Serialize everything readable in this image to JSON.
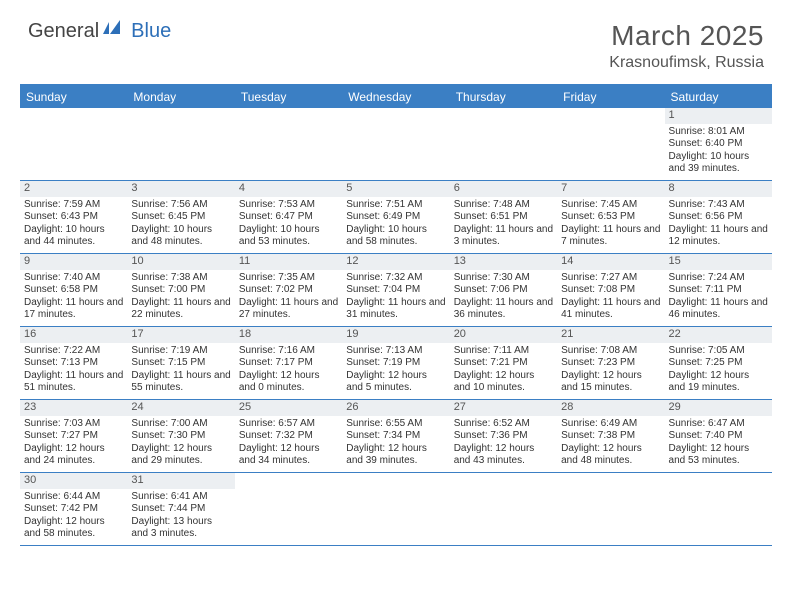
{
  "logo": {
    "text1": "General",
    "text2": "Blue"
  },
  "title": "March 2025",
  "location": "Krasnoufimsk, Russia",
  "colors": {
    "header_bg": "#3b7fc4",
    "header_text": "#ffffff",
    "daynum_bg": "#eceff2",
    "border": "#3b7fc4",
    "logo_gray": "#444444",
    "logo_blue": "#2d6fb8"
  },
  "day_headers": [
    "Sunday",
    "Monday",
    "Tuesday",
    "Wednesday",
    "Thursday",
    "Friday",
    "Saturday"
  ],
  "weeks": [
    [
      null,
      null,
      null,
      null,
      null,
      null,
      {
        "n": "1",
        "sr": "8:01 AM",
        "ss": "6:40 PM",
        "dl": "10 hours and 39 minutes."
      }
    ],
    [
      {
        "n": "2",
        "sr": "7:59 AM",
        "ss": "6:43 PM",
        "dl": "10 hours and 44 minutes."
      },
      {
        "n": "3",
        "sr": "7:56 AM",
        "ss": "6:45 PM",
        "dl": "10 hours and 48 minutes."
      },
      {
        "n": "4",
        "sr": "7:53 AM",
        "ss": "6:47 PM",
        "dl": "10 hours and 53 minutes."
      },
      {
        "n": "5",
        "sr": "7:51 AM",
        "ss": "6:49 PM",
        "dl": "10 hours and 58 minutes."
      },
      {
        "n": "6",
        "sr": "7:48 AM",
        "ss": "6:51 PM",
        "dl": "11 hours and 3 minutes."
      },
      {
        "n": "7",
        "sr": "7:45 AM",
        "ss": "6:53 PM",
        "dl": "11 hours and 7 minutes."
      },
      {
        "n": "8",
        "sr": "7:43 AM",
        "ss": "6:56 PM",
        "dl": "11 hours and 12 minutes."
      }
    ],
    [
      {
        "n": "9",
        "sr": "7:40 AM",
        "ss": "6:58 PM",
        "dl": "11 hours and 17 minutes."
      },
      {
        "n": "10",
        "sr": "7:38 AM",
        "ss": "7:00 PM",
        "dl": "11 hours and 22 minutes."
      },
      {
        "n": "11",
        "sr": "7:35 AM",
        "ss": "7:02 PM",
        "dl": "11 hours and 27 minutes."
      },
      {
        "n": "12",
        "sr": "7:32 AM",
        "ss": "7:04 PM",
        "dl": "11 hours and 31 minutes."
      },
      {
        "n": "13",
        "sr": "7:30 AM",
        "ss": "7:06 PM",
        "dl": "11 hours and 36 minutes."
      },
      {
        "n": "14",
        "sr": "7:27 AM",
        "ss": "7:08 PM",
        "dl": "11 hours and 41 minutes."
      },
      {
        "n": "15",
        "sr": "7:24 AM",
        "ss": "7:11 PM",
        "dl": "11 hours and 46 minutes."
      }
    ],
    [
      {
        "n": "16",
        "sr": "7:22 AM",
        "ss": "7:13 PM",
        "dl": "11 hours and 51 minutes."
      },
      {
        "n": "17",
        "sr": "7:19 AM",
        "ss": "7:15 PM",
        "dl": "11 hours and 55 minutes."
      },
      {
        "n": "18",
        "sr": "7:16 AM",
        "ss": "7:17 PM",
        "dl": "12 hours and 0 minutes."
      },
      {
        "n": "19",
        "sr": "7:13 AM",
        "ss": "7:19 PM",
        "dl": "12 hours and 5 minutes."
      },
      {
        "n": "20",
        "sr": "7:11 AM",
        "ss": "7:21 PM",
        "dl": "12 hours and 10 minutes."
      },
      {
        "n": "21",
        "sr": "7:08 AM",
        "ss": "7:23 PM",
        "dl": "12 hours and 15 minutes."
      },
      {
        "n": "22",
        "sr": "7:05 AM",
        "ss": "7:25 PM",
        "dl": "12 hours and 19 minutes."
      }
    ],
    [
      {
        "n": "23",
        "sr": "7:03 AM",
        "ss": "7:27 PM",
        "dl": "12 hours and 24 minutes."
      },
      {
        "n": "24",
        "sr": "7:00 AM",
        "ss": "7:30 PM",
        "dl": "12 hours and 29 minutes."
      },
      {
        "n": "25",
        "sr": "6:57 AM",
        "ss": "7:32 PM",
        "dl": "12 hours and 34 minutes."
      },
      {
        "n": "26",
        "sr": "6:55 AM",
        "ss": "7:34 PM",
        "dl": "12 hours and 39 minutes."
      },
      {
        "n": "27",
        "sr": "6:52 AM",
        "ss": "7:36 PM",
        "dl": "12 hours and 43 minutes."
      },
      {
        "n": "28",
        "sr": "6:49 AM",
        "ss": "7:38 PM",
        "dl": "12 hours and 48 minutes."
      },
      {
        "n": "29",
        "sr": "6:47 AM",
        "ss": "7:40 PM",
        "dl": "12 hours and 53 minutes."
      }
    ],
    [
      {
        "n": "30",
        "sr": "6:44 AM",
        "ss": "7:42 PM",
        "dl": "12 hours and 58 minutes."
      },
      {
        "n": "31",
        "sr": "6:41 AM",
        "ss": "7:44 PM",
        "dl": "13 hours and 3 minutes."
      },
      null,
      null,
      null,
      null,
      null
    ]
  ],
  "labels": {
    "sunrise": "Sunrise:",
    "sunset": "Sunset:",
    "daylight": "Daylight:"
  }
}
